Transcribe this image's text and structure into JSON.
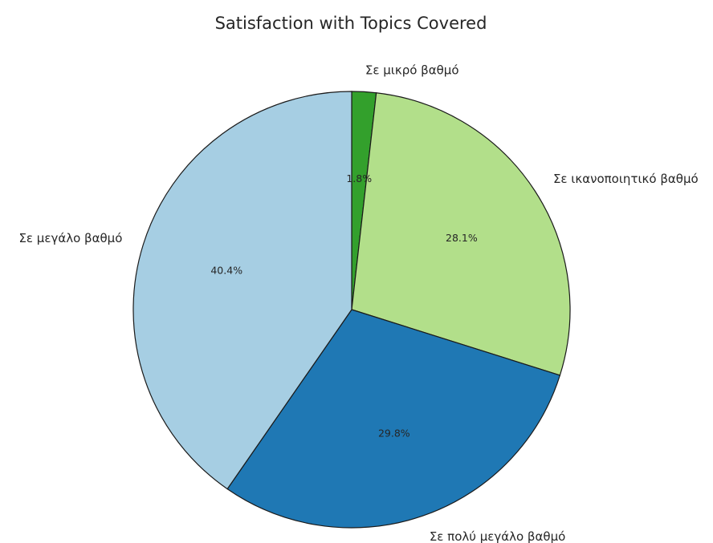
{
  "chart_data": {
    "type": "pie",
    "title": "Satisfaction with Topics Covered",
    "slices": [
      {
        "label": "Σε μικρό βαθμό",
        "value": 1.8,
        "pct_label": "1.8%",
        "color": "#33a02c"
      },
      {
        "label": "Σε ικανοποιητικό βαθμό",
        "value": 28.1,
        "pct_label": "28.1%",
        "color": "#b2df8a"
      },
      {
        "label": "Σε πολύ μεγάλο βαθμό",
        "value": 29.8,
        "pct_label": "29.8%",
        "color": "#1f78b4"
      },
      {
        "label": "Σε μεγάλο βαθμό",
        "value": 40.4,
        "pct_label": "40.4%",
        "color": "#a6cee3"
      }
    ],
    "start_angle_deg": 90,
    "direction": "clockwise",
    "edge_color": "#1a1a1a"
  }
}
